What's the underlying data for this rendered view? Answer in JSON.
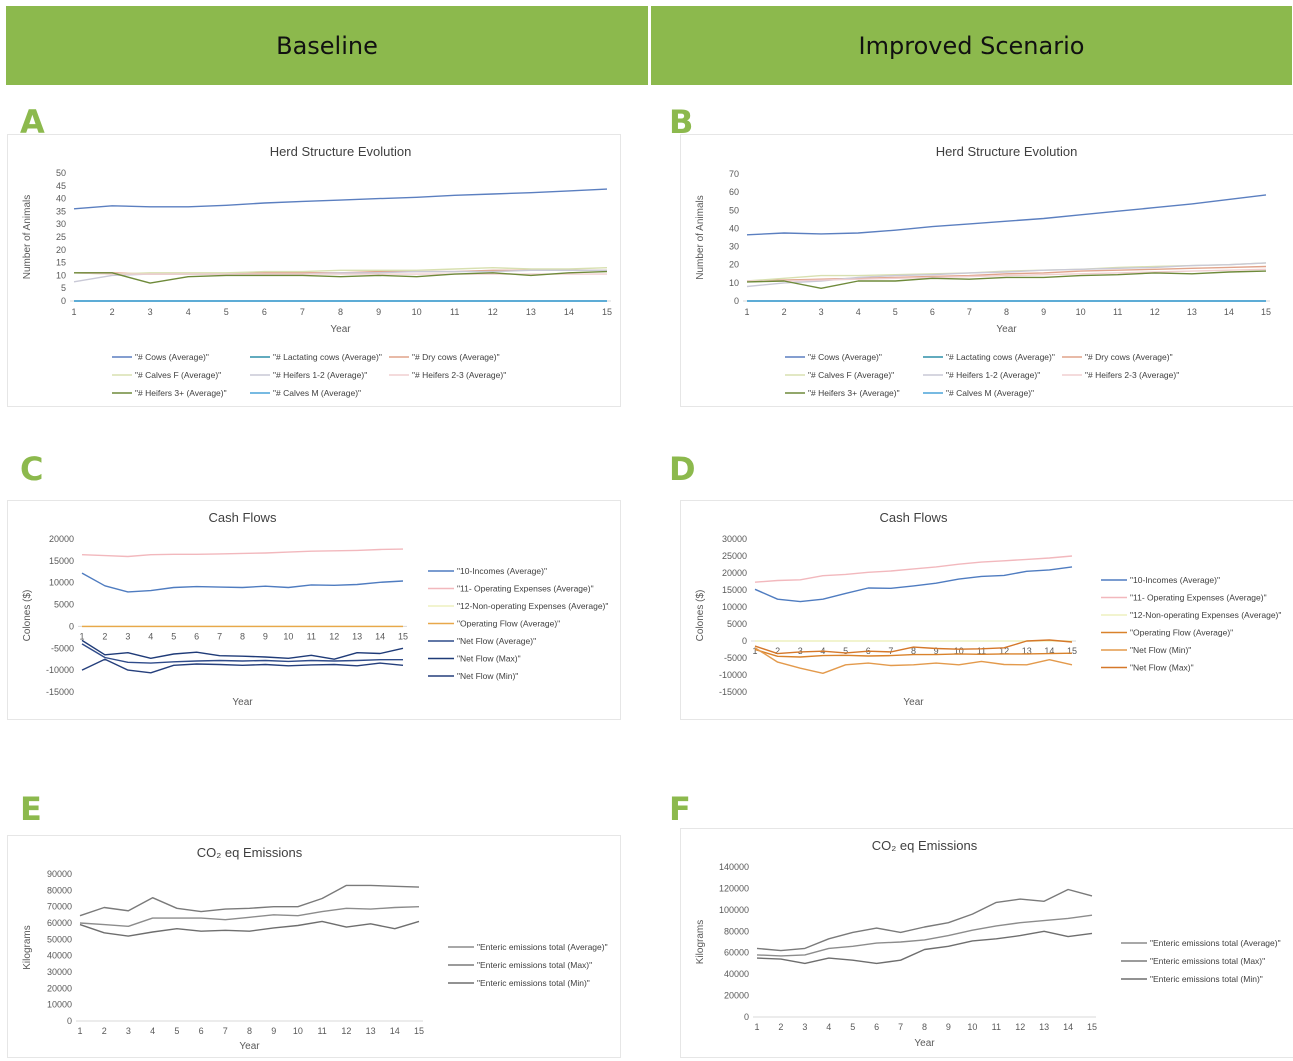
{
  "headers": {
    "left": "Baseline",
    "right": "Improved Scenario"
  },
  "panel_labels": [
    "A",
    "B",
    "C",
    "D",
    "E",
    "F"
  ],
  "chart_data": [
    {
      "id": "A",
      "type": "line",
      "title": "Herd Structure Evolution",
      "xlabel": "Year",
      "ylabel": "Number of Animals",
      "x": [
        1,
        2,
        3,
        4,
        5,
        6,
        7,
        8,
        9,
        10,
        11,
        12,
        13,
        14,
        15
      ],
      "ylim": [
        0,
        50
      ],
      "ystep": 5,
      "grid": false,
      "legend": "bottom",
      "series": [
        {
          "name": "\"# Cows (Average)\"",
          "color": "#5b7fc0",
          "values": [
            36,
            37.2,
            36.8,
            36.8,
            37.4,
            38.3,
            38.9,
            39.4,
            40,
            40.5,
            41.3,
            41.8,
            42.3,
            43,
            43.7
          ]
        },
        {
          "name": "\"# Lactating cows (Average)\"",
          "color": "#2e8fa8",
          "values": [
            0,
            0,
            0,
            0,
            0,
            0,
            0,
            0,
            0,
            0,
            0,
            0,
            0,
            0,
            0
          ]
        },
        {
          "name": "\"# Dry cows (Average)\"",
          "color": "#e0a38a",
          "values": [
            11,
            11,
            10.5,
            10.5,
            10.5,
            11,
            11,
            11,
            11.5,
            11.5,
            11.5,
            12,
            12,
            12,
            12
          ]
        },
        {
          "name": "\"# Calves F (Average)\"",
          "color": "#d8e0b0",
          "values": [
            11,
            10.5,
            11,
            11,
            11,
            11.5,
            11.5,
            12,
            12,
            12,
            12.5,
            13,
            12.5,
            12.5,
            13
          ]
        },
        {
          "name": "\"# Heifers 1-2 (Average)\"",
          "color": "#c9c9d6",
          "values": [
            7.5,
            10,
            10.5,
            10.5,
            10.5,
            10.5,
            10.5,
            11,
            11,
            11.5,
            11.5,
            11.5,
            12,
            12,
            12
          ]
        },
        {
          "name": "\"# Heifers 2-3 (Average)\"",
          "color": "#f0cfd0",
          "values": [
            11,
            10.5,
            10.5,
            10.5,
            10.5,
            10.5,
            10.5,
            10.5,
            10.5,
            10.5,
            10.5,
            10.5,
            10.5,
            10.5,
            10.5
          ]
        },
        {
          "name": "\"# Heifers 3+ (Average)\"",
          "color": "#6e8a3a",
          "values": [
            11,
            11,
            7,
            9.5,
            10,
            10,
            10,
            9.5,
            10,
            9.5,
            10.5,
            11,
            10,
            11,
            11.5
          ]
        },
        {
          "name": "\"# Calves M (Average)\"",
          "color": "#4aa3d8",
          "values": [
            0,
            0,
            0,
            0,
            0,
            0,
            0,
            0,
            0,
            0,
            0,
            0,
            0,
            0,
            0
          ]
        }
      ]
    },
    {
      "id": "B",
      "type": "line",
      "title": "Herd Structure Evolution",
      "xlabel": "Year",
      "ylabel": "Number of Animals",
      "x": [
        1,
        2,
        3,
        4,
        5,
        6,
        7,
        8,
        9,
        10,
        11,
        12,
        13,
        14,
        15
      ],
      "ylim": [
        0,
        70
      ],
      "ystep": 10,
      "grid": false,
      "legend": "bottom",
      "series": [
        {
          "name": "\"# Cows (Average)\"",
          "color": "#5b7fc0",
          "values": [
            36.5,
            37.5,
            37,
            37.5,
            39,
            41,
            42.5,
            44,
            45.5,
            47.5,
            49.5,
            51.5,
            53.5,
            56,
            58.5
          ]
        },
        {
          "name": "\"# Lactating cows (Average)\"",
          "color": "#2e8fa8",
          "values": [
            0,
            0,
            0,
            0,
            0,
            0,
            0,
            0,
            0,
            0,
            0,
            0,
            0,
            0,
            0
          ]
        },
        {
          "name": "\"# Dry cows (Average)\"",
          "color": "#e0a38a",
          "values": [
            11,
            11.5,
            12,
            12.5,
            13,
            13.5,
            14,
            15,
            15.5,
            16.5,
            17,
            17.5,
            18,
            18.5,
            19
          ]
        },
        {
          "name": "\"# Calves F (Average)\"",
          "color": "#d8e0b0",
          "values": [
            11,
            12.5,
            14,
            14,
            14.5,
            15,
            15.5,
            16.5,
            17,
            17.5,
            18.5,
            19,
            19.5,
            20,
            21
          ]
        },
        {
          "name": "\"# Heifers 1-2 (Average)\"",
          "color": "#c9c9d6",
          "values": [
            8,
            10,
            11,
            13,
            14,
            14.5,
            15.5,
            16,
            17,
            17.5,
            18,
            18.5,
            19.5,
            20,
            21
          ]
        },
        {
          "name": "\"# Heifers 2-3 (Average)\"",
          "color": "#f0cfd0",
          "values": [
            11,
            11,
            11.5,
            12,
            12.5,
            13,
            13.5,
            14,
            14.5,
            15,
            15.5,
            16,
            16.5,
            17,
            17.5
          ]
        },
        {
          "name": "\"# Heifers  3+ (Average)\"",
          "color": "#6e8a3a",
          "values": [
            10.5,
            11,
            7,
            11,
            11,
            12.5,
            12,
            13,
            13,
            14,
            14.5,
            15.5,
            15,
            16,
            16.5
          ]
        },
        {
          "name": "\"# Calves M (Average)\"",
          "color": "#4aa3d8",
          "values": [
            0,
            0,
            0,
            0,
            0,
            0,
            0,
            0,
            0,
            0,
            0,
            0,
            0,
            0,
            0
          ]
        }
      ]
    },
    {
      "id": "C",
      "type": "line",
      "title": "Cash Flows",
      "xlabel": "Year",
      "ylabel": "Colones ($)",
      "x": [
        1,
        2,
        3,
        4,
        5,
        6,
        7,
        8,
        9,
        10,
        11,
        12,
        13,
        14,
        15
      ],
      "ylim": [
        -15000,
        20000
      ],
      "ystep": 5000,
      "grid": false,
      "legend": "right",
      "series": [
        {
          "name": "\"10-Incomes (Average)\"",
          "color": "#4f7cc0",
          "values": [
            12200,
            9300,
            7900,
            8200,
            8900,
            9100,
            9000,
            8900,
            9200,
            8900,
            9500,
            9400,
            9600,
            10100,
            10400
          ]
        },
        {
          "name": "\"11- Operating Expenses (Average)\"",
          "color": "#f2b8bd",
          "values": [
            16400,
            16200,
            16000,
            16400,
            16500,
            16500,
            16600,
            16700,
            16800,
            17000,
            17200,
            17300,
            17400,
            17600,
            17700
          ]
        },
        {
          "name": "\"12-Non-operating Expenses (Average)\"",
          "color": "#eef0bf",
          "values": [
            0,
            0,
            0,
            0,
            0,
            0,
            0,
            0,
            0,
            0,
            0,
            0,
            0,
            0,
            0
          ]
        },
        {
          "name": "\"Operating Flow (Average)\"",
          "color": "#e8a84a",
          "values": [
            0,
            0,
            0,
            0,
            0,
            0,
            0,
            0,
            0,
            0,
            0,
            0,
            0,
            0,
            0
          ]
        },
        {
          "name": "\"Net Flow (Average)\"",
          "color": "#2f4b8a",
          "values": [
            -4000,
            -7100,
            -8200,
            -8400,
            -8100,
            -7900,
            -7800,
            -7900,
            -7800,
            -8000,
            -7800,
            -7900,
            -7800,
            -7600,
            -7600
          ]
        },
        {
          "name": "\"Net Flow (Max)\"",
          "color": "#1f3b78",
          "values": [
            -3200,
            -6500,
            -6000,
            -7300,
            -6300,
            -5900,
            -6700,
            -6800,
            -7000,
            -7300,
            -6600,
            -7500,
            -6000,
            -6200,
            -5000
          ]
        },
        {
          "name": "\"Net Flow (Min)\"",
          "color": "#253f7c",
          "values": [
            -10000,
            -7500,
            -10000,
            -10600,
            -8900,
            -8600,
            -8700,
            -8900,
            -8700,
            -9000,
            -8800,
            -8700,
            -9000,
            -8400,
            -8900
          ]
        }
      ]
    },
    {
      "id": "D",
      "type": "line",
      "title": "Cash Flows",
      "xlabel": "Year",
      "ylabel": "Colones ($)",
      "x": [
        1,
        2,
        3,
        4,
        5,
        6,
        7,
        8,
        9,
        10,
        11,
        12,
        13,
        14,
        15
      ],
      "ylim": [
        -15000,
        30000
      ],
      "ystep": 5000,
      "grid": false,
      "legend": "right",
      "series": [
        {
          "name": "\"10-Incomes (Average)\"",
          "color": "#4f7cc0",
          "values": [
            15200,
            12300,
            11600,
            12300,
            14000,
            15600,
            15500,
            16200,
            17000,
            18200,
            19000,
            19300,
            20500,
            20900,
            21800
          ]
        },
        {
          "name": "\"11- Operating Expenses (Average)\"",
          "color": "#f2b8bd",
          "values": [
            17300,
            17800,
            18000,
            19200,
            19600,
            20200,
            20600,
            21200,
            21800,
            22600,
            23200,
            23600,
            24000,
            24400,
            25000
          ]
        },
        {
          "name": "\"12-Non-operating Expenses (Average)\"",
          "color": "#eef0bf",
          "values": [
            0,
            0,
            0,
            0,
            0,
            0,
            0,
            0,
            0,
            0,
            0,
            0,
            0,
            0,
            0
          ]
        },
        {
          "name": "\"Operating Flow (Average)\"",
          "color": "#d9822b",
          "values": [
            -2500,
            -4500,
            -4700,
            -4300,
            -4200,
            -4400,
            -4300,
            -4000,
            -4000,
            -3800,
            -3900,
            -3800,
            -3800,
            -3700,
            -3600
          ]
        },
        {
          "name": "\"Net Flow (Min)\"",
          "color": "#e39a4c",
          "values": [
            -2000,
            -6200,
            -8000,
            -9500,
            -7000,
            -6500,
            -7200,
            -7000,
            -6500,
            -7000,
            -6000,
            -6900,
            -7000,
            -5500,
            -7000
          ]
        },
        {
          "name": "\"Net Flow (Max)\"",
          "color": "#d5782a",
          "values": [
            -1500,
            -3700,
            -3200,
            -3000,
            -3500,
            -3000,
            -3200,
            -1800,
            -2200,
            -2400,
            -2300,
            -2000,
            0,
            300,
            -300
          ]
        }
      ]
    },
    {
      "id": "E",
      "type": "line",
      "title": "CO₂  eq Emissions",
      "xlabel": "Year",
      "ylabel": "Kilograms",
      "x": [
        1,
        2,
        3,
        4,
        5,
        6,
        7,
        8,
        9,
        10,
        11,
        12,
        13,
        14,
        15
      ],
      "ylim": [
        0,
        90000
      ],
      "ystep": 10000,
      "grid": false,
      "legend": "right",
      "series": [
        {
          "name": "\"Enteric emissions total (Average)\"",
          "color": "#8c8c8c",
          "values": [
            60000,
            59000,
            58000,
            63000,
            63000,
            63000,
            62000,
            63500,
            65000,
            64500,
            67000,
            69000,
            68500,
            69500,
            70000
          ]
        },
        {
          "name": "\"Enteric emissions total (Max)\"",
          "color": "#7a7a7a",
          "values": [
            64500,
            69500,
            67500,
            75500,
            69000,
            67000,
            68500,
            69000,
            70000,
            70000,
            75000,
            83000,
            83000,
            82500,
            82000
          ]
        },
        {
          "name": "\"Enteric emissions total (Min)\"",
          "color": "#6e6e6e",
          "values": [
            59000,
            54000,
            52000,
            54500,
            56500,
            55000,
            55500,
            55000,
            57000,
            58500,
            61000,
            57500,
            59500,
            56500,
            61000
          ]
        }
      ]
    },
    {
      "id": "F",
      "type": "line",
      "title": "CO₂ eq Emissions",
      "xlabel": "Year",
      "ylabel": "Kilograms",
      "x": [
        1,
        2,
        3,
        4,
        5,
        6,
        7,
        8,
        9,
        10,
        11,
        12,
        13,
        14,
        15
      ],
      "ylim": [
        0,
        140000
      ],
      "ystep": 20000,
      "grid": false,
      "legend": "right",
      "series": [
        {
          "name": "\"Enteric emissions total (Average)\"",
          "color": "#8c8c8c",
          "values": [
            58000,
            57000,
            58000,
            64000,
            66000,
            69000,
            70000,
            72000,
            76000,
            81000,
            85000,
            88000,
            90000,
            92000,
            95000
          ]
        },
        {
          "name": "\"Enteric emissions total (Max)\"",
          "color": "#7a7a7a",
          "values": [
            64000,
            62000,
            64000,
            73000,
            79000,
            83000,
            79000,
            84000,
            88000,
            96000,
            107000,
            110000,
            108000,
            119000,
            113000
          ]
        },
        {
          "name": "\"Enteric emissions total (Min)\"",
          "color": "#6e6e6e",
          "values": [
            55000,
            54000,
            50000,
            55000,
            53000,
            50000,
            53000,
            63000,
            66000,
            71000,
            73000,
            76000,
            80000,
            75000,
            78000
          ]
        }
      ]
    }
  ]
}
